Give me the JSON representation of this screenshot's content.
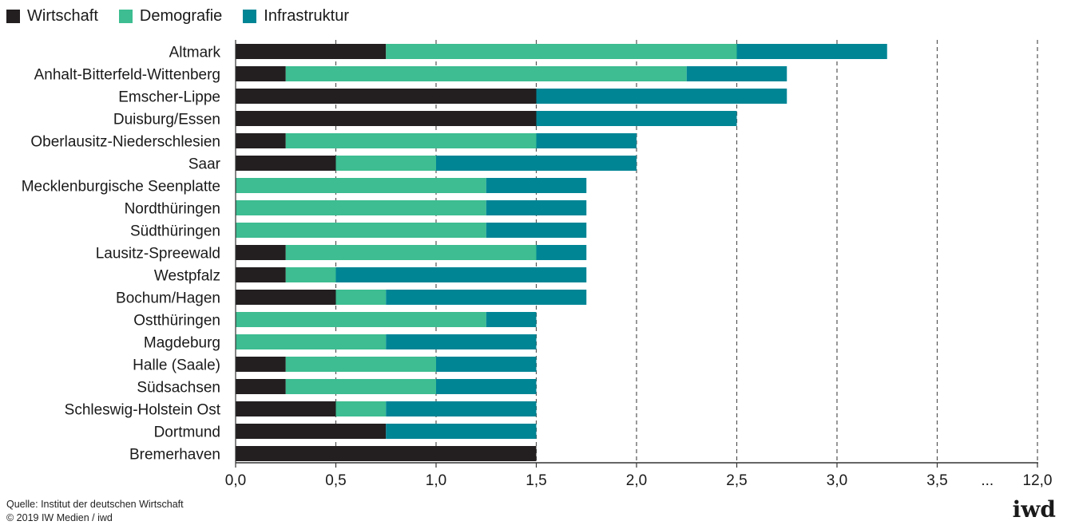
{
  "legend": {
    "items": [
      {
        "label": "Wirtschaft",
        "color": "#231f20"
      },
      {
        "label": "Demografie",
        "color": "#3dbd91"
      },
      {
        "label": "Infrastruktur",
        "color": "#008595"
      }
    ]
  },
  "source": {
    "line1": "Quelle: Institut der deutschen Wirtschaft",
    "line2": "© 2019 IW Medien / iwd"
  },
  "logo": {
    "text": "iwd"
  },
  "chart_data": {
    "type": "bar",
    "orientation": "horizontal",
    "stacked": true,
    "categories": [
      "Altmark",
      "Anhalt-Bitterfeld-Wittenberg",
      "Emscher-Lippe",
      "Duisburg/Essen",
      "Oberlausitz-Niederschlesien",
      "Saar",
      "Mecklenburgische Seenplatte",
      "Nordthüringen",
      "Südthüringen",
      "Lausitz-Spreewald",
      "Westpfalz",
      "Bochum/Hagen",
      "Ostthüringen",
      "Magdeburg",
      "Halle (Saale)",
      "Südsachsen",
      "Schleswig-Holstein Ost",
      "Dortmund",
      "Bremerhaven"
    ],
    "series": [
      {
        "name": "Wirtschaft",
        "color": "#231f20",
        "values": [
          0.75,
          0.25,
          1.5,
          1.5,
          0.25,
          0.5,
          0,
          0,
          0,
          0.25,
          0.25,
          0.5,
          0,
          0,
          0.25,
          0.25,
          0.5,
          0.75,
          1.5
        ]
      },
      {
        "name": "Demografie",
        "color": "#3dbd91",
        "values": [
          1.75,
          2.0,
          0,
          0,
          1.25,
          0.5,
          1.25,
          1.25,
          1.25,
          1.25,
          0.25,
          0.25,
          1.25,
          0.75,
          0.75,
          0.75,
          0.25,
          0,
          0
        ]
      },
      {
        "name": "Infrastruktur",
        "color": "#008595",
        "values": [
          0.75,
          0.5,
          1.25,
          1.0,
          0.5,
          1.0,
          0.5,
          0.5,
          0.5,
          0.25,
          1.25,
          1.0,
          0.25,
          0.75,
          0.5,
          0.5,
          0.75,
          0.75,
          0
        ]
      }
    ],
    "x_ticks": [
      "0,0",
      "0,5",
      "1,0",
      "1,5",
      "2,0",
      "2,5",
      "3,0",
      "3,5",
      "...",
      "12,0"
    ],
    "x_tick_values": [
      0,
      0.5,
      1.0,
      1.5,
      2.0,
      2.5,
      3.0,
      3.5,
      null,
      4.0
    ],
    "xlim": [
      0,
      4.0
    ],
    "grid": "vertical-dashed",
    "legend_position": "top-left"
  }
}
